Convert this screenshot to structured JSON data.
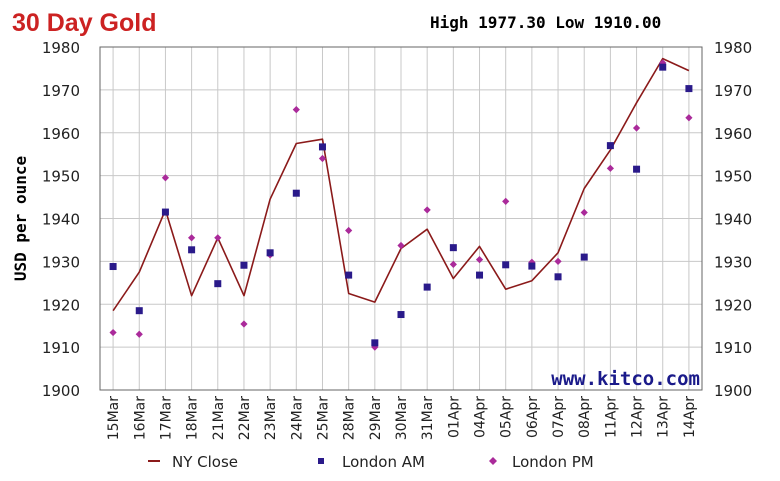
{
  "header": {
    "title": "30 Day Gold",
    "high_label": "High",
    "high_value": "1977.30",
    "low_label": "Low",
    "low_value": "1910.00"
  },
  "colors": {
    "title": "#cc2222",
    "close_line": "#8b1a1a",
    "am_marker": "#2a1a8a",
    "pm_marker": "#aa2a9a",
    "watermark": "#1a1a8a",
    "grid": "#c8c8c8",
    "background": "#ffffff"
  },
  "watermark": "www.kitco.com",
  "chart_data": {
    "type": "line",
    "title": "30 Day Gold",
    "ylabel": "USD per ounce",
    "xlabel": "",
    "ylim": [
      1900,
      1980
    ],
    "yticks": [
      "1900",
      "1910",
      "1920",
      "1930",
      "1940",
      "1950",
      "1960",
      "1970",
      "1980"
    ],
    "grid": true,
    "categories": [
      "15Mar",
      "16Mar",
      "17Mar",
      "18Mar",
      "21Mar",
      "22Mar",
      "23Mar",
      "24Mar",
      "25Mar",
      "28Mar",
      "29Mar",
      "30Mar",
      "31Mar",
      "01Apr",
      "04Apr",
      "05Apr",
      "06Apr",
      "07Apr",
      "08Apr",
      "11Apr",
      "12Apr",
      "13Apr",
      "14Apr"
    ],
    "series": [
      {
        "name": "NY Close",
        "style": "line",
        "values": [
          1918.5,
          1927.5,
          1942,
          1922,
          1935.5,
          1922,
          1944.5,
          1957.5,
          1958.5,
          1922.5,
          1920.5,
          1933,
          1937.5,
          1926,
          1933.5,
          1923.5,
          1925.5,
          1932,
          1947,
          1956,
          1967,
          1977.3,
          1974.5
        ]
      },
      {
        "name": "London AM",
        "style": "square",
        "values": [
          1928.8,
          1918.5,
          1941.5,
          1932.7,
          1924.8,
          1929.1,
          1932,
          1945.9,
          1956.7,
          1926.8,
          1911,
          1917.6,
          1924,
          1933.2,
          1926.8,
          1929.2,
          1928.9,
          1926.4,
          1931,
          1957,
          1951.5,
          1975.3,
          1970.3
        ]
      },
      {
        "name": "London PM",
        "style": "diamond",
        "values": [
          1913.4,
          1913,
          1949.5,
          1935.5,
          1935.5,
          1915.4,
          1931.5,
          1965.4,
          1954,
          1937.2,
          1910,
          1933.7,
          1942,
          1929.3,
          1930.4,
          1944,
          1929.8,
          1930,
          1941.4,
          1951.7,
          1961.1,
          1976.3,
          1963.5
        ]
      }
    ],
    "legend": {
      "position": "bottom",
      "entries": [
        "NY Close",
        "London AM",
        "London PM"
      ]
    }
  }
}
